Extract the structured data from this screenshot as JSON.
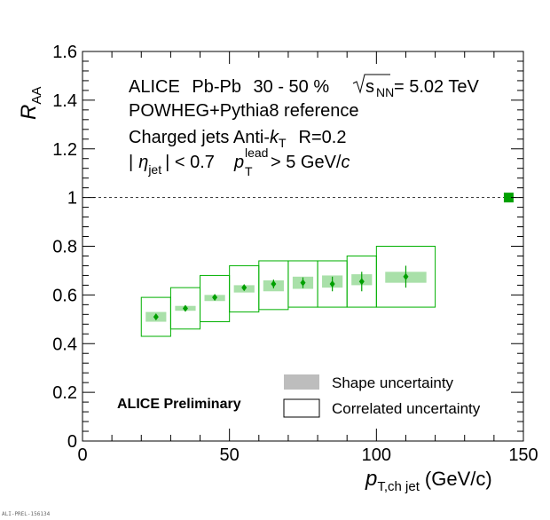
{
  "chart_data": {
    "type": "scatter",
    "title": "",
    "xlabel": "p_T,ch jet (GeV/c)",
    "ylabel": "R_AA",
    "xlim": [
      0,
      150
    ],
    "ylim": [
      0,
      1.6
    ],
    "x_ticks": [
      0,
      50,
      100,
      150
    ],
    "y_ticks": [
      0,
      0.2,
      0.4,
      0.6,
      0.8,
      1,
      1.2,
      1.4,
      1.6
    ],
    "y_tick_labels": [
      "0",
      "0.2",
      "0.4",
      "0.6",
      "0.8",
      "1",
      "1.2",
      "1.4",
      "1.6"
    ],
    "reference_line_y": 1,
    "normalization_uncertainty": {
      "x": 145,
      "y": 1.0,
      "half_height": 0.02
    },
    "series": [
      {
        "name": "Charged jets R=0.2, Pb-Pb 30-50%",
        "color": "#00a000",
        "points": [
          {
            "x": 25,
            "xlo": 20,
            "xhi": 30,
            "y": 0.51,
            "stat": 0.012,
            "shape_lo": 0.49,
            "shape_hi": 0.53,
            "corr_lo": 0.43,
            "corr_hi": 0.59
          },
          {
            "x": 35,
            "xlo": 30,
            "xhi": 40,
            "y": 0.545,
            "stat": 0.008,
            "shape_lo": 0.535,
            "shape_hi": 0.555,
            "corr_lo": 0.46,
            "corr_hi": 0.63
          },
          {
            "x": 45,
            "xlo": 40,
            "xhi": 50,
            "y": 0.59,
            "stat": 0.01,
            "shape_lo": 0.575,
            "shape_hi": 0.6,
            "corr_lo": 0.49,
            "corr_hi": 0.68
          },
          {
            "x": 55,
            "xlo": 50,
            "xhi": 60,
            "y": 0.63,
            "stat": 0.012,
            "shape_lo": 0.61,
            "shape_hi": 0.64,
            "corr_lo": 0.53,
            "corr_hi": 0.72
          },
          {
            "x": 65,
            "xlo": 60,
            "xhi": 70,
            "y": 0.645,
            "stat": 0.018,
            "shape_lo": 0.615,
            "shape_hi": 0.66,
            "corr_lo": 0.54,
            "corr_hi": 0.74
          },
          {
            "x": 75,
            "xlo": 70,
            "xhi": 80,
            "y": 0.65,
            "stat": 0.022,
            "shape_lo": 0.625,
            "shape_hi": 0.675,
            "corr_lo": 0.55,
            "corr_hi": 0.74
          },
          {
            "x": 85,
            "xlo": 80,
            "xhi": 90,
            "y": 0.645,
            "stat": 0.03,
            "shape_lo": 0.63,
            "shape_hi": 0.68,
            "corr_lo": 0.55,
            "corr_hi": 0.74
          },
          {
            "x": 95,
            "xlo": 90,
            "xhi": 100,
            "y": 0.655,
            "stat": 0.04,
            "shape_lo": 0.64,
            "shape_hi": 0.685,
            "corr_lo": 0.55,
            "corr_hi": 0.76
          },
          {
            "x": 110,
            "xlo": 100,
            "xhi": 120,
            "y": 0.675,
            "stat": 0.045,
            "shape_lo": 0.65,
            "shape_hi": 0.695,
            "corr_lo": 0.55,
            "corr_hi": 0.8
          }
        ]
      }
    ],
    "annotations": {
      "line1_collab": "ALICE",
      "line1_system": "Pb-Pb",
      "line1_centrality": "30 - 50 %",
      "line1_sqrt": "s",
      "line1_sub": "NN",
      "line1_energy": "= 5.02 TeV",
      "line2": "POWHEG+Pythia8 reference",
      "line3_pre": "Charged jets  Anti-",
      "line3_k": "k",
      "line3_ksub": "T",
      "line3_r": "R=0.2",
      "line4_abs": "|",
      "line4_eta": "η",
      "line4_etasub": "jet",
      "line4_cut": "| < 0.7",
      "line4_p": "p",
      "line4_psub": "T",
      "line4_psup": "lead",
      "line4_val": "> 5 GeV/",
      "line4_c": "c",
      "preliminary": "ALICE Preliminary"
    },
    "legend": {
      "position": "bottom-right",
      "entries": [
        {
          "label": "Shape uncertainty",
          "style": "filled"
        },
        {
          "label": "Correlated uncertainty",
          "style": "box"
        }
      ]
    },
    "xlabel_parts": {
      "p": "p",
      "sub": "T,ch jet",
      "unit": "(GeV/c)"
    },
    "ylabel_parts": {
      "r": "R",
      "sub": "AA"
    }
  },
  "footer_id": "ALI-PREL-156134"
}
